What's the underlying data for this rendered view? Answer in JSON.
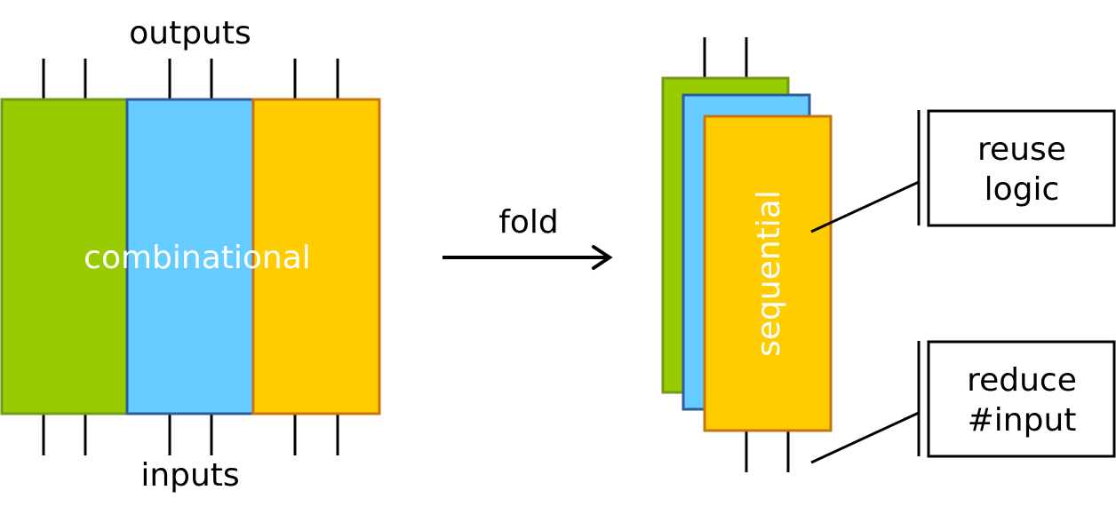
{
  "labels": {
    "outputs": "outputs",
    "inputs": "inputs",
    "combinational": "combinational",
    "fold": "fold",
    "sequential": "sequential",
    "reuse_logic": [
      "reuse",
      "logic"
    ],
    "reduce_input": [
      "reduce",
      "#input"
    ]
  },
  "colors": {
    "green_fill": "#99CC00",
    "green_stroke": "#6F9A1A",
    "blue_fill": "#66CCFF",
    "blue_stroke": "#2E5C9A",
    "yellow_fill": "#FFCC00",
    "yellow_stroke": "#C8730F",
    "text_white": "#FFFFFF",
    "line_black": "#000000"
  }
}
